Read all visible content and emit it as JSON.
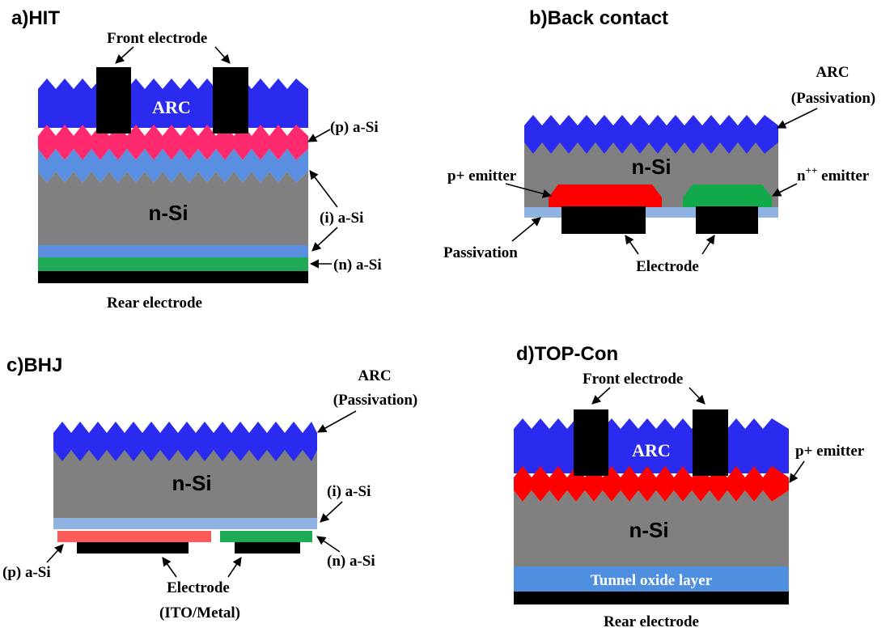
{
  "colors": {
    "arc_blue": "#2b2bf0",
    "arc_blue_dark": "#1c1cc8",
    "p_asi_pink": "#ff2a6e",
    "i_asi_blue": "#5a8ee0",
    "n_si_gray": "#808080",
    "n_asi_green": "#1faa55",
    "electrode_black": "#000000",
    "p_emitter_red": "#ff0000",
    "n_emitter_green": "#11a94a",
    "passivation_lightblue": "#8fb4e3",
    "bhj_p_asi": "#ff5a5a",
    "tunnel_oxide_blue": "#4f8fdf"
  },
  "panels": {
    "hit": {
      "title": "a)HIT",
      "front_electrode": "Front electrode",
      "arc": "ARC",
      "p_asi": "(p) a-Si",
      "n_si": "n-Si",
      "i_asi": "(i) a-Si",
      "n_asi": "(n) a-Si",
      "rear_electrode": "Rear electrode"
    },
    "back_contact": {
      "title": "b)Back contact",
      "arc_line1": "ARC",
      "arc_line2": "(Passivation)",
      "n_si": "n-Si",
      "p_emitter": "p+ emitter",
      "n_emitter_base": "n",
      "n_emitter_sup": "++",
      "n_emitter_rest": " emitter",
      "passivation": "Passivation",
      "electrode": "Electrode"
    },
    "bhj": {
      "title": "c)BHJ",
      "arc_line1": "ARC",
      "arc_line2": "(Passivation)",
      "n_si": "n-Si",
      "i_asi": "(i) a-Si",
      "n_asi": "(n) a-Si",
      "p_asi": "(p) a-Si",
      "electrode_line1": "Electrode",
      "electrode_line2": "(ITO/Metal)"
    },
    "topcon": {
      "title": "d)TOP-Con",
      "front_electrode": "Front electrode",
      "arc": "ARC",
      "p_emitter": "p+ emitter",
      "n_si": "n-Si",
      "tunnel_oxide": "Tunnel oxide layer",
      "rear_electrode": "Rear electrode"
    }
  }
}
